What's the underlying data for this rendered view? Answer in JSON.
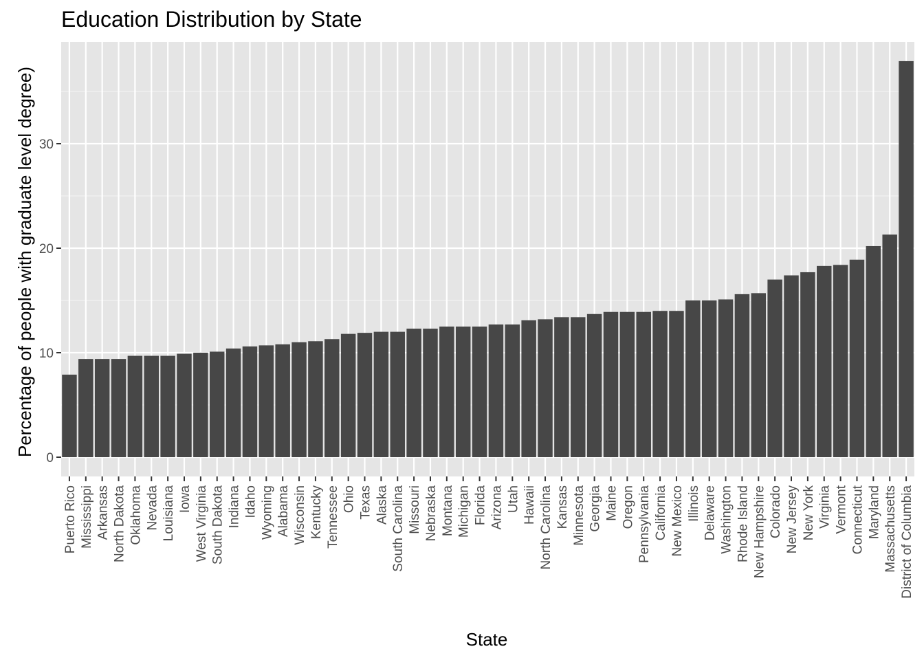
{
  "chart_data": {
    "type": "bar",
    "title": "Education Distribution by State",
    "xlabel": "State",
    "ylabel": "Percentage of people with graduate level degree)",
    "ylim": [
      0,
      39.2
    ],
    "yticks": [
      0,
      10,
      20,
      30
    ],
    "grid": true,
    "legend": "none",
    "colors": {
      "bar": "#474747",
      "panel": "#e5e5e5",
      "grid_major": "#ffffff",
      "grid_minor": "#f2f2f2",
      "tick_text": "#4d4d4d",
      "tick_mark": "#333333"
    },
    "categories": [
      "Puerto Rico",
      "Mississippi",
      "Arkansas",
      "North Dakota",
      "Oklahoma",
      "Nevada",
      "Louisiana",
      "Iowa",
      "West Virginia",
      "South Dakota",
      "Indiana",
      "Idaho",
      "Wyoming",
      "Alabama",
      "Wisconsin",
      "Kentucky",
      "Tennessee",
      "Ohio",
      "Texas",
      "Alaska",
      "South Carolina",
      "Missouri",
      "Nebraska",
      "Montana",
      "Michigan",
      "Florida",
      "Arizona",
      "Utah",
      "Hawaii",
      "North Carolina",
      "Kansas",
      "Minnesota",
      "Georgia",
      "Maine",
      "Oregon",
      "Pennsylvania",
      "California",
      "New Mexico",
      "Illinois",
      "Delaware",
      "Washington",
      "Rhode Island",
      "New Hampshire",
      "Colorado",
      "New Jersey",
      "New York",
      "Virginia",
      "Vermont",
      "Connecticut",
      "Maryland",
      "Massachusetts",
      "District of Columbia"
    ],
    "values": [
      7.9,
      9.4,
      9.4,
      9.4,
      9.7,
      9.7,
      9.7,
      9.9,
      10.0,
      10.1,
      10.4,
      10.6,
      10.7,
      10.8,
      11.0,
      11.1,
      11.3,
      11.8,
      11.9,
      12.0,
      12.0,
      12.3,
      12.3,
      12.5,
      12.5,
      12.5,
      12.7,
      12.7,
      13.1,
      13.2,
      13.4,
      13.4,
      13.7,
      13.9,
      13.9,
      13.9,
      14.0,
      14.0,
      15.0,
      15.0,
      15.1,
      15.6,
      15.7,
      17.0,
      17.4,
      17.7,
      18.3,
      18.4,
      18.9,
      20.2,
      21.3,
      37.9
    ]
  }
}
